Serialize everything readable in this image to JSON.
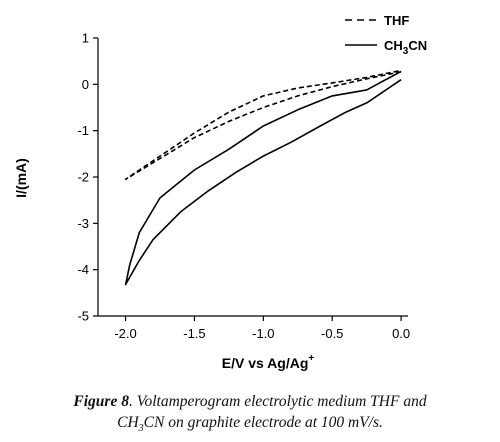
{
  "chart_data": {
    "type": "line",
    "xlabel_main": "E/V vs Ag/Ag",
    "xlabel_sup": "+",
    "ylabel": "I/(mA)",
    "xlim": [
      -2.2,
      0.05
    ],
    "ylim": [
      -5,
      1
    ],
    "xticks": [
      -2.0,
      -1.5,
      -1.0,
      -0.5,
      0.0
    ],
    "xtick_labels": [
      "-2.0",
      "-1.5",
      "-1.0",
      "-0.5",
      "0.0"
    ],
    "yticks": [
      1,
      0,
      -1,
      -2,
      -3,
      -4,
      -5
    ],
    "ytick_labels": [
      "1",
      "0",
      "-1",
      "-2",
      "-3",
      "-4",
      "-5"
    ],
    "legend_placement": "top-right",
    "series": [
      {
        "name": "THF",
        "style": "dashed",
        "color": "#000000",
        "x": [
          0.0,
          -0.25,
          -0.5,
          -0.75,
          -1.0,
          -1.25,
          -1.5,
          -1.75,
          -2.0,
          -1.9,
          -1.7,
          -1.5,
          -1.25,
          -1.0,
          -0.75,
          -0.5,
          -0.25,
          0.0
        ],
        "y": [
          0.27,
          0.12,
          -0.05,
          -0.25,
          -0.5,
          -0.8,
          -1.15,
          -1.6,
          -2.05,
          -1.85,
          -1.45,
          -1.05,
          -0.6,
          -0.25,
          -0.08,
          0.03,
          0.15,
          0.3
        ]
      },
      {
        "name_main": "CH",
        "name_sub": "3",
        "name_end": "CN",
        "style": "solid",
        "color": "#000000",
        "x": [
          0.0,
          -0.1,
          -0.25,
          -0.4,
          -0.6,
          -0.8,
          -1.0,
          -1.2,
          -1.4,
          -1.6,
          -1.8,
          -1.9,
          -2.0,
          -1.97,
          -1.9,
          -1.75,
          -1.5,
          -1.25,
          -1.0,
          -0.75,
          -0.5,
          -0.25,
          0.0
        ],
        "y": [
          0.1,
          -0.1,
          -0.4,
          -0.6,
          -0.92,
          -1.25,
          -1.55,
          -1.9,
          -2.3,
          -2.75,
          -3.35,
          -3.8,
          -4.32,
          -3.9,
          -3.2,
          -2.45,
          -1.85,
          -1.4,
          -0.9,
          -0.55,
          -0.25,
          -0.12,
          0.28
        ]
      }
    ]
  },
  "legend": {
    "thf_label": "THF",
    "ch3cn_main": "CH",
    "ch3cn_sub": "3",
    "ch3cn_end": "CN"
  },
  "caption": {
    "figure_label": "Figure 8",
    "line1_text": ". Voltamperogram electrolytic medium THF and",
    "line2_a": "CH",
    "line2_sub": "3",
    "line2_b": "CN on graphite electrode at  100 mV/s."
  }
}
